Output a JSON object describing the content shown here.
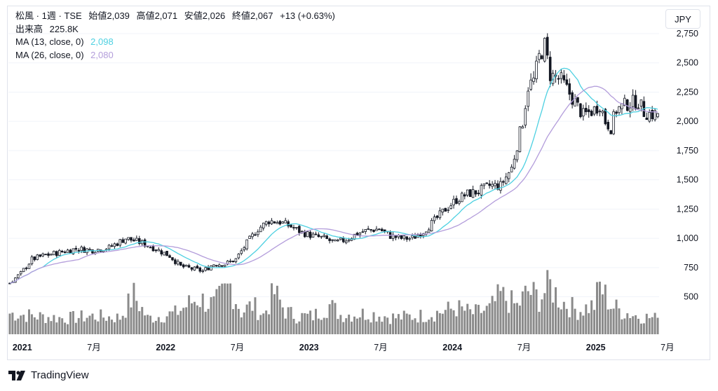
{
  "header": {
    "symbol": "松風",
    "sep": "·",
    "interval": "1週",
    "exchange": "TSE",
    "open_label": "始値",
    "open": "2,039",
    "high_label": "高値",
    "high": "2,071",
    "low_label": "安値",
    "low": "2,026",
    "close_label": "終値",
    "close": "2,067",
    "change": "+13 (+0.63%)",
    "volume_label": "出来高",
    "volume": "225.8K"
  },
  "indicators": [
    {
      "label": "MA (13, close, 0)",
      "value": "2,098",
      "color": "#4dd0e1"
    },
    {
      "label": "MA (26, close, 0)",
      "value": "2,080",
      "color": "#b39ddb"
    }
  ],
  "currency": "JPY",
  "brand": "TradingView",
  "chart_data": {
    "type": "candlestick",
    "interval": "1週",
    "y_ticks": [
      "2,750",
      "2,500",
      "2,250",
      "2,000",
      "1,750",
      "1,500",
      "1,250",
      "1,000",
      "750",
      "500"
    ],
    "y_tick_values": [
      2750,
      2500,
      2250,
      2000,
      1750,
      1500,
      1250,
      1000,
      750,
      500
    ],
    "x_ticks": [
      {
        "label": "2021",
        "year": true
      },
      {
        "label": "7月",
        "year": false
      },
      {
        "label": "2022",
        "year": true
      },
      {
        "label": "7月",
        "year": false
      },
      {
        "label": "2023",
        "year": true
      },
      {
        "label": "7月",
        "year": false
      },
      {
        "label": "2024",
        "year": true
      },
      {
        "label": "7月",
        "year": false
      },
      {
        "label": "2025",
        "year": true
      },
      {
        "label": "7月",
        "year": false
      }
    ],
    "x_tick_index": [
      3,
      29,
      55,
      81,
      107,
      133,
      159,
      185,
      211,
      237
    ],
    "close_anchors": [
      [
        0,
        620
      ],
      [
        4,
        700
      ],
      [
        8,
        820
      ],
      [
        12,
        850
      ],
      [
        18,
        880
      ],
      [
        24,
        910
      ],
      [
        30,
        900
      ],
      [
        36,
        920
      ],
      [
        42,
        1000
      ],
      [
        48,
        960
      ],
      [
        52,
        920
      ],
      [
        58,
        850
      ],
      [
        62,
        760
      ],
      [
        66,
        740
      ],
      [
        70,
        720
      ],
      [
        74,
        780
      ],
      [
        78,
        780
      ],
      [
        82,
        820
      ],
      [
        86,
        960
      ],
      [
        90,
        1080
      ],
      [
        94,
        1150
      ],
      [
        98,
        1140
      ],
      [
        102,
        1100
      ],
      [
        106,
        1050
      ],
      [
        110,
        1020
      ],
      [
        114,
        1000
      ],
      [
        118,
        960
      ],
      [
        122,
        990
      ],
      [
        126,
        1040
      ],
      [
        130,
        1070
      ],
      [
        134,
        1080
      ],
      [
        138,
        1020
      ],
      [
        142,
        1000
      ],
      [
        146,
        1000
      ],
      [
        150,
        1060
      ],
      [
        154,
        1150
      ],
      [
        158,
        1250
      ],
      [
        162,
        1330
      ],
      [
        166,
        1380
      ],
      [
        170,
        1400
      ],
      [
        174,
        1450
      ],
      [
        178,
        1450
      ],
      [
        182,
        1600
      ],
      [
        186,
        2000
      ],
      [
        188,
        2300
      ],
      [
        190,
        2350
      ],
      [
        192,
        2550
      ],
      [
        194,
        2650
      ],
      [
        196,
        2400
      ],
      [
        200,
        2350
      ],
      [
        204,
        2200
      ],
      [
        208,
        2050
      ],
      [
        212,
        2100
      ],
      [
        214,
        2150
      ],
      [
        216,
        2000
      ],
      [
        218,
        1950
      ],
      [
        220,
        2100
      ],
      [
        224,
        2150
      ],
      [
        228,
        2170
      ],
      [
        230,
        2080
      ],
      [
        233,
        2060
      ],
      [
        235,
        2067
      ]
    ],
    "volume_anchors_k": [
      [
        0,
        300
      ],
      [
        10,
        260
      ],
      [
        20,
        230
      ],
      [
        30,
        260
      ],
      [
        40,
        240
      ],
      [
        45,
        560
      ],
      [
        50,
        230
      ],
      [
        60,
        300
      ],
      [
        68,
        520
      ],
      [
        74,
        420
      ],
      [
        80,
        700
      ],
      [
        84,
        320
      ],
      [
        88,
        420
      ],
      [
        92,
        280
      ],
      [
        96,
        600
      ],
      [
        100,
        330
      ],
      [
        104,
        260
      ],
      [
        110,
        260
      ],
      [
        116,
        420
      ],
      [
        120,
        280
      ],
      [
        130,
        300
      ],
      [
        140,
        240
      ],
      [
        150,
        270
      ],
      [
        156,
        320
      ],
      [
        162,
        380
      ],
      [
        168,
        300
      ],
      [
        174,
        360
      ],
      [
        178,
        560
      ],
      [
        184,
        400
      ],
      [
        188,
        620
      ],
      [
        192,
        520
      ],
      [
        196,
        700
      ],
      [
        200,
        480
      ],
      [
        206,
        340
      ],
      [
        212,
        420
      ],
      [
        214,
        700
      ],
      [
        218,
        420
      ],
      [
        222,
        330
      ],
      [
        228,
        260
      ],
      [
        235,
        226
      ]
    ],
    "ma13_last": 2098,
    "ma26_last": 2080,
    "price_range": [
      420,
      2750
    ]
  }
}
